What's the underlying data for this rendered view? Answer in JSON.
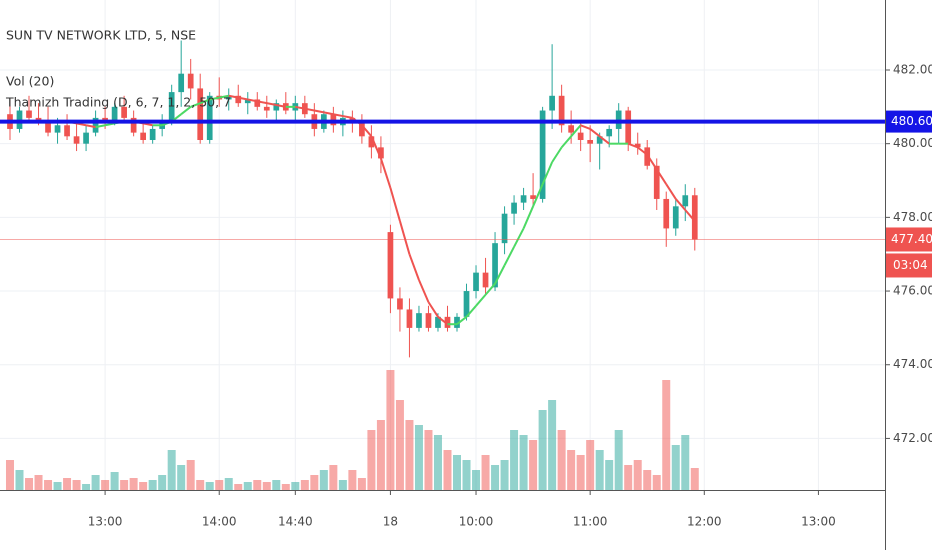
{
  "chart_data": {
    "type": "candlestick",
    "title": "SUN TV NETWORK LTD, 5, NSE",
    "volume_label": "Vol (20)",
    "indicator_label": "Thamizh Trading (D, 6, 7, 1, 2, 50, 7",
    "up_color": "#26a69a",
    "down_color": "#ef5350",
    "ma_rising_color": "#4cd964",
    "ma_falling_color": "#ef5350",
    "ylim": [
      470.6,
      483.9
    ],
    "yticks": [
      {
        "value": 472,
        "label": "472.00"
      },
      {
        "value": 474,
        "label": "474.00"
      },
      {
        "value": 476,
        "label": "476.00"
      },
      {
        "value": 478,
        "label": "478.00"
      },
      {
        "value": 480,
        "label": "480.00"
      },
      {
        "value": 482,
        "label": "482.00"
      }
    ],
    "xlim": [
      -1.05,
      92
    ],
    "xticks": [
      {
        "value": 10,
        "label": "13:00"
      },
      {
        "value": 22,
        "label": "14:00"
      },
      {
        "value": 30,
        "label": "14:40"
      },
      {
        "value": 40,
        "label": "18"
      },
      {
        "value": 49,
        "label": "10:00"
      },
      {
        "value": 61,
        "label": "11:00"
      },
      {
        "value": 73,
        "label": "12:00"
      },
      {
        "value": 85,
        "label": "13:00"
      }
    ],
    "y2lim": [
      0,
      490
    ],
    "grid": true,
    "hline": {
      "value": 480.6,
      "label": "480.60",
      "color": "#1414e6"
    },
    "last_price": {
      "value": 477.4,
      "label": "477.40",
      "countdown": "03:04"
    },
    "open": [
      480.8,
      480.4,
      480.9,
      480.7,
      480.6,
      480.3,
      480.5,
      480.2,
      480.0,
      480.3,
      480.7,
      480.6,
      481.0,
      480.7,
      480.3,
      480.1,
      480.4,
      480.6,
      481.4,
      481.9,
      481.5,
      480.1,
      481.3,
      481.2,
      481.3,
      481.1,
      481.2,
      481.0,
      480.9,
      481.1,
      480.9,
      481.1,
      480.8,
      480.4,
      480.8,
      480.5,
      480.7,
      480.6,
      480.2,
      479.9,
      477.6,
      475.8,
      475.5,
      475.0,
      475.4,
      475.0,
      475.3,
      475.0,
      475.3,
      476.0,
      476.5,
      476.1,
      477.3,
      478.1,
      478.4,
      478.6,
      478.5,
      480.9,
      481.3,
      480.5,
      480.3,
      480.1,
      480.0,
      480.2,
      480.4,
      480.9,
      480.0,
      479.9,
      479.4,
      478.5,
      477.7,
      478.3,
      478.6
    ],
    "high": [
      481.2,
      481.0,
      481.3,
      481.1,
      481.0,
      480.7,
      480.8,
      480.6,
      480.5,
      480.9,
      481.0,
      481.1,
      481.3,
      480.9,
      480.6,
      480.5,
      480.8,
      481.6,
      482.8,
      482.3,
      481.9,
      481.4,
      481.8,
      481.5,
      481.6,
      481.4,
      481.4,
      481.3,
      481.2,
      481.4,
      481.3,
      481.3,
      481.1,
      480.9,
      481.0,
      480.9,
      480.9,
      480.8,
      480.5,
      480.2,
      477.8,
      476.1,
      475.8,
      475.6,
      475.6,
      475.4,
      475.6,
      475.4,
      476.2,
      476.7,
      476.9,
      477.6,
      478.3,
      478.6,
      478.8,
      479.2,
      481.0,
      482.7,
      481.6,
      480.9,
      480.6,
      480.5,
      480.3,
      480.5,
      481.1,
      481.0,
      480.3,
      480.1,
      479.6,
      478.7,
      478.5,
      478.9,
      478.8
    ],
    "low": [
      480.1,
      480.3,
      480.6,
      480.5,
      480.2,
      480.0,
      480.1,
      479.8,
      479.8,
      480.2,
      480.4,
      480.5,
      480.6,
      480.2,
      480.0,
      480.0,
      480.2,
      480.5,
      481.0,
      481.2,
      480.0,
      480.0,
      481.0,
      480.9,
      481.0,
      480.8,
      480.9,
      480.7,
      480.6,
      480.8,
      480.6,
      480.7,
      480.2,
      480.3,
      480.3,
      480.2,
      480.3,
      480.0,
      479.6,
      479.2,
      475.4,
      474.9,
      474.2,
      474.9,
      474.9,
      474.9,
      474.9,
      474.9,
      475.2,
      475.8,
      475.9,
      476.0,
      477.0,
      477.8,
      478.2,
      478.3,
      478.4,
      480.4,
      480.3,
      480.0,
      479.8,
      479.5,
      479.3,
      479.9,
      480.0,
      479.8,
      479.7,
      479.3,
      478.2,
      477.2,
      477.5,
      477.9,
      477.1
    ],
    "close": [
      480.4,
      480.9,
      480.7,
      480.6,
      480.3,
      480.5,
      480.2,
      480.0,
      480.3,
      480.7,
      480.6,
      481.0,
      480.7,
      480.3,
      480.1,
      480.4,
      480.6,
      481.4,
      481.9,
      481.5,
      480.1,
      481.3,
      481.2,
      481.3,
      481.1,
      481.2,
      481.0,
      480.9,
      481.1,
      480.9,
      481.1,
      480.8,
      480.4,
      480.8,
      480.5,
      480.7,
      480.6,
      480.2,
      479.9,
      479.6,
      475.8,
      475.5,
      475.0,
      475.4,
      475.0,
      475.3,
      475.0,
      475.3,
      476.0,
      476.5,
      476.1,
      477.3,
      478.1,
      478.4,
      478.6,
      478.5,
      480.9,
      481.3,
      480.5,
      480.3,
      480.1,
      480.0,
      480.2,
      480.4,
      480.9,
      480.0,
      479.9,
      479.4,
      478.5,
      477.7,
      478.3,
      478.6,
      477.4
    ],
    "ma": [
      null,
      null,
      null,
      null,
      null,
      null,
      480.6,
      480.55,
      480.5,
      480.45,
      480.5,
      480.55,
      480.6,
      480.6,
      480.55,
      480.5,
      480.5,
      480.6,
      480.8,
      481.0,
      481.1,
      481.2,
      481.25,
      481.3,
      481.25,
      481.2,
      481.15,
      481.1,
      481.05,
      481.0,
      481.0,
      480.95,
      480.9,
      480.85,
      480.8,
      480.75,
      480.7,
      480.5,
      480.2,
      479.6,
      478.8,
      477.9,
      477.0,
      476.3,
      475.7,
      475.3,
      475.1,
      475.1,
      475.3,
      475.6,
      475.9,
      476.2,
      476.7,
      477.2,
      477.7,
      478.3,
      478.9,
      479.5,
      479.9,
      480.2,
      480.5,
      480.4,
      480.2,
      480.0,
      480.0,
      480.0,
      479.9,
      479.7,
      479.3,
      478.9,
      478.5,
      478.2,
      477.9
    ],
    "volume": [
      30,
      20,
      12,
      15,
      10,
      8,
      12,
      10,
      6,
      15,
      10,
      18,
      10,
      12,
      8,
      10,
      15,
      40,
      25,
      30,
      10,
      8,
      10,
      12,
      6,
      8,
      10,
      8,
      10,
      6,
      8,
      10,
      15,
      20,
      25,
      10,
      20,
      12,
      60,
      70,
      120,
      90,
      70,
      65,
      60,
      55,
      40,
      35,
      30,
      20,
      35,
      25,
      30,
      60,
      55,
      50,
      80,
      90,
      60,
      40,
      35,
      50,
      40,
      30,
      60,
      25,
      30,
      20,
      15,
      110,
      45,
      55,
      22
    ]
  }
}
